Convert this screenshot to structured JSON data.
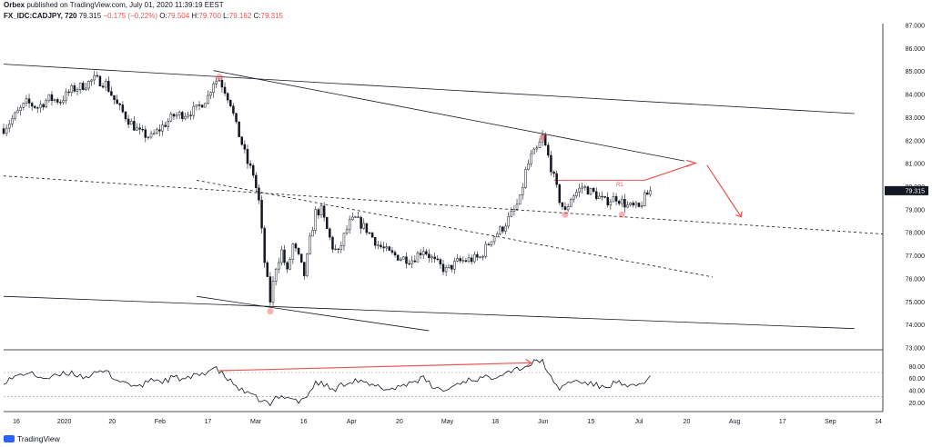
{
  "header": {
    "publisher": "Orbex",
    "published_text": "published on TradingView.com, July 01, 2020 11:39:19 EEST",
    "symbol": "FX_IDC:CADJPY, 720",
    "last": "79.315",
    "change": "−0.175 (−0.22%)",
    "o_label": "O:",
    "o": "79.504",
    "h_label": "H:",
    "h": "79.700",
    "l_label": "L:",
    "l": "79.162",
    "c_label": "C:",
    "c": "79.315"
  },
  "footer": {
    "brand": "TradingView"
  },
  "annotations": {
    "r1": "R1"
  },
  "colors": {
    "accent": "#ef5350",
    "line": "#131722",
    "grid": "#e0e3eb",
    "price_tag": "#131722"
  },
  "chart_data": [
    {
      "type": "candlestick",
      "title": "FX_IDC:CADJPY, 720",
      "ylim": [
        72,
        87
      ],
      "price_axis_ticks": [
        "87.000",
        "86.000",
        "85.000",
        "84.000",
        "83.000",
        "82.000",
        "81.000",
        "80.000",
        "79.000",
        "78.000",
        "77.000",
        "76.000",
        "75.000",
        "74.000",
        "73.000"
      ],
      "last_price_tag": "79.315",
      "x_ticks": [
        "16",
        "2020",
        "20",
        "Feb",
        "17",
        "Mar",
        "16",
        "Apr",
        "20",
        "May",
        "18",
        "Jun",
        "15",
        "Jul",
        "20",
        "Aug",
        "17",
        "Sep",
        "14"
      ],
      "close_path": [
        [
          0,
          82.2
        ],
        [
          2,
          82.8
        ],
        [
          4,
          83.4
        ],
        [
          6,
          83.2
        ],
        [
          8,
          83.6
        ],
        [
          10,
          83.5
        ],
        [
          12,
          84.0
        ],
        [
          14,
          84.2
        ],
        [
          16,
          84.5
        ],
        [
          18,
          84.3
        ],
        [
          20,
          83.3
        ],
        [
          22,
          82.6
        ],
        [
          24,
          82.0
        ],
        [
          26,
          81.8
        ],
        [
          28,
          82.3
        ],
        [
          30,
          82.8
        ],
        [
          32,
          82.9
        ],
        [
          34,
          83.1
        ],
        [
          36,
          83.7
        ],
        [
          37,
          84.4
        ],
        [
          38,
          84.5
        ],
        [
          39,
          84.0
        ],
        [
          40,
          83.4
        ],
        [
          41,
          82.3
        ],
        [
          42,
          81.5
        ],
        [
          43,
          80.6
        ],
        [
          44,
          80.1
        ],
        [
          45,
          78.8
        ],
        [
          46,
          76.0
        ],
        [
          47,
          74.2
        ],
        [
          48,
          75.8
        ],
        [
          49,
          76.5
        ],
        [
          50,
          75.5
        ],
        [
          51,
          76.8
        ],
        [
          52,
          76.2
        ],
        [
          53,
          75.4
        ],
        [
          54,
          77.0
        ],
        [
          55,
          78.3
        ],
        [
          56,
          78.4
        ],
        [
          57,
          77.5
        ],
        [
          58,
          76.7
        ],
        [
          59,
          76.4
        ],
        [
          60,
          77.2
        ],
        [
          61,
          77.8
        ],
        [
          62,
          78.0
        ],
        [
          64,
          77.5
        ],
        [
          66,
          76.8
        ],
        [
          68,
          76.4
        ],
        [
          70,
          76.2
        ],
        [
          72,
          76.1
        ],
        [
          74,
          76.6
        ],
        [
          76,
          76.0
        ],
        [
          78,
          75.6
        ],
        [
          80,
          76.0
        ],
        [
          82,
          76.1
        ],
        [
          84,
          76.2
        ],
        [
          86,
          77.1
        ],
        [
          88,
          77.6
        ],
        [
          90,
          78.4
        ],
        [
          91,
          78.9
        ],
        [
          92,
          80.2
        ],
        [
          93,
          80.9
        ],
        [
          94,
          81.2
        ],
        [
          95,
          81.8
        ],
        [
          96,
          80.9
        ],
        [
          97,
          79.9
        ],
        [
          98,
          78.9
        ],
        [
          99,
          78.3
        ],
        [
          100,
          79.0
        ],
        [
          102,
          79.5
        ],
        [
          104,
          79.2
        ],
        [
          106,
          78.8
        ],
        [
          108,
          79.0
        ],
        [
          110,
          78.6
        ],
        [
          112,
          78.5
        ],
        [
          113,
          79.0
        ],
        [
          114,
          79.3
        ]
      ],
      "drawn_lines": [
        {
          "kind": "trendline",
          "from": [
            0,
            85.2
          ],
          "to": [
            150,
            82.9
          ]
        },
        {
          "kind": "trendline",
          "from": [
            37,
            84.9
          ],
          "to": [
            120,
            80.7
          ]
        },
        {
          "kind": "trendline",
          "from": [
            0,
            74.4
          ],
          "to": [
            150,
            72.9
          ]
        },
        {
          "kind": "trendline",
          "from": [
            34,
            74.4
          ],
          "to": [
            75,
            72.8
          ]
        },
        {
          "kind": "dashed",
          "from": [
            0,
            80.0
          ],
          "to": [
            155,
            77.3
          ]
        },
        {
          "kind": "dashed",
          "from": [
            34,
            79.8
          ],
          "to": [
            125,
            75.3
          ]
        },
        {
          "kind": "r1_level",
          "value": 79.8,
          "from": [
            97,
            79.8
          ],
          "to": [
            113,
            79.8
          ]
        }
      ],
      "markers": [
        [
          38,
          84.6
        ],
        [
          47,
          73.7
        ],
        [
          95,
          81.8
        ],
        [
          99,
          78.2
        ],
        [
          109,
          78.2
        ]
      ]
    },
    {
      "type": "line",
      "ylim": [
        10,
        100
      ],
      "y_ticks": [
        "80.00",
        "60.00",
        "40.00",
        "20.00"
      ],
      "levels": [
        70,
        30
      ],
      "path": [
        [
          0,
          55
        ],
        [
          2,
          62
        ],
        [
          4,
          70
        ],
        [
          6,
          64
        ],
        [
          8,
          60
        ],
        [
          10,
          66
        ],
        [
          12,
          70
        ],
        [
          14,
          63
        ],
        [
          16,
          67
        ],
        [
          18,
          72
        ],
        [
          20,
          58
        ],
        [
          22,
          52
        ],
        [
          24,
          45
        ],
        [
          26,
          60
        ],
        [
          28,
          55
        ],
        [
          30,
          62
        ],
        [
          32,
          58
        ],
        [
          34,
          65
        ],
        [
          36,
          72
        ],
        [
          37,
          78
        ],
        [
          38,
          72
        ],
        [
          40,
          55
        ],
        [
          42,
          40
        ],
        [
          44,
          30
        ],
        [
          46,
          22
        ],
        [
          47,
          15
        ],
        [
          48,
          28
        ],
        [
          50,
          32
        ],
        [
          52,
          22
        ],
        [
          54,
          35
        ],
        [
          55,
          55
        ],
        [
          57,
          48
        ],
        [
          58,
          40
        ],
        [
          60,
          52
        ],
        [
          62,
          58
        ],
        [
          64,
          50
        ],
        [
          66,
          46
        ],
        [
          68,
          42
        ],
        [
          70,
          48
        ],
        [
          72,
          55
        ],
        [
          74,
          60
        ],
        [
          76,
          44
        ],
        [
          78,
          40
        ],
        [
          80,
          52
        ],
        [
          82,
          58
        ],
        [
          84,
          60
        ],
        [
          86,
          62
        ],
        [
          88,
          70
        ],
        [
          90,
          75
        ],
        [
          92,
          80
        ],
        [
          93,
          84
        ],
        [
          94,
          88
        ],
        [
          95,
          90
        ],
        [
          96,
          70
        ],
        [
          97,
          50
        ],
        [
          98,
          44
        ],
        [
          100,
          56
        ],
        [
          102,
          54
        ],
        [
          104,
          50
        ],
        [
          106,
          45
        ],
        [
          108,
          55
        ],
        [
          110,
          44
        ],
        [
          112,
          50
        ],
        [
          114,
          62
        ]
      ],
      "divergence_arrow": {
        "from": [
          38,
          73
        ],
        "to": [
          93,
          86
        ]
      }
    }
  ]
}
